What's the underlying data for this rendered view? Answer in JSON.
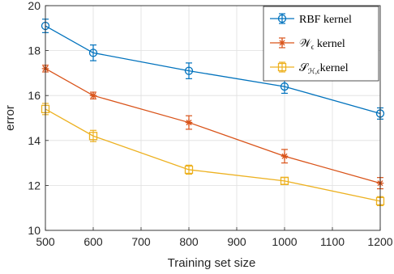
{
  "chart_data": {
    "type": "line",
    "title": "",
    "xlabel": "Training set size",
    "ylabel": "error",
    "xlim": [
      500,
      1200
    ],
    "ylim": [
      10,
      20
    ],
    "x": [
      500,
      600,
      800,
      1000,
      1200
    ],
    "xticks": [
      "500",
      "600",
      "700",
      "800",
      "900",
      "1000",
      "1100",
      "1200"
    ],
    "yticks": [
      "10",
      "12",
      "14",
      "16",
      "18",
      "20"
    ],
    "grid": true,
    "legend_position": "top-right",
    "series": [
      {
        "name": "RBF kernel",
        "label": {
          "main": "RBF kernel",
          "sub": ""
        },
        "color": "#0072BD",
        "marker": "circle",
        "values": [
          19.1,
          17.9,
          17.1,
          16.4,
          15.2
        ],
        "errors": [
          0.3,
          0.35,
          0.35,
          0.3,
          0.25
        ]
      },
      {
        "name": "W_ε kernel",
        "label": {
          "main": "𝒲",
          "sub": "ϵ",
          "tail": " kernel"
        },
        "color": "#D95319",
        "marker": "star",
        "values": [
          17.2,
          16.0,
          14.8,
          13.3,
          12.1
        ],
        "errors": [
          0.15,
          0.15,
          0.3,
          0.3,
          0.25
        ]
      },
      {
        "name": "S_H,ε kernel",
        "label": {
          "main": "𝒮",
          "sub": "ℋ,ϵ",
          "tail": "kernel"
        },
        "color": "#EDB120",
        "marker": "square",
        "values": [
          15.4,
          14.2,
          12.7,
          12.2,
          11.3
        ],
        "errors": [
          0.25,
          0.25,
          0.2,
          0.15,
          0.2
        ]
      }
    ]
  }
}
